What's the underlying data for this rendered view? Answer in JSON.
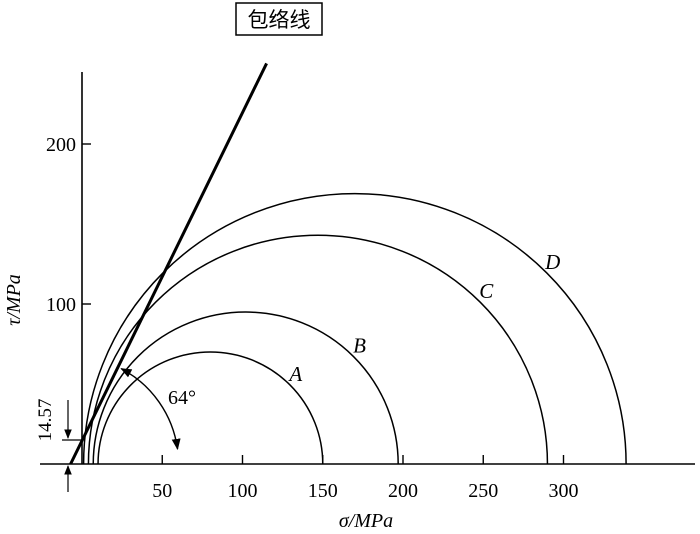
{
  "chart_data": {
    "type": "line",
    "title": "",
    "xlabel": "σ/MPa",
    "ylabel": "τ/MPa",
    "xticks": [
      50,
      100,
      150,
      200,
      250,
      300
    ],
    "xtick_labels": [
      "50",
      "100",
      "150",
      "200",
      "250",
      "300"
    ],
    "yticks": [
      100,
      200
    ],
    "ytick_labels": [
      "100",
      "200"
    ],
    "xlim": [
      -5,
      395
    ],
    "ylim": [
      0,
      250
    ],
    "grid": false,
    "circles": [
      {
        "name": "A",
        "sigma3": 10,
        "sigma1": 150
      },
      {
        "name": "B",
        "sigma3": 7,
        "sigma1": 197
      },
      {
        "name": "C",
        "sigma3": 4,
        "sigma1": 290
      },
      {
        "name": "D",
        "sigma3": 1,
        "sigma1": 339
      }
    ],
    "envelope": {
      "label": "包络线",
      "cohesion": 14.57,
      "friction_angle_deg": 64
    },
    "annotations": {
      "cohesion_label": "14.57",
      "angle_label": "64°"
    }
  }
}
